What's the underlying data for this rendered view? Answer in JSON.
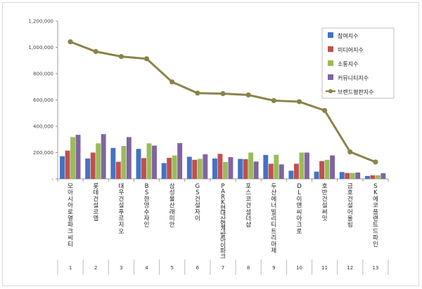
{
  "chart_data": {
    "type": "bar",
    "ylim": [
      0,
      1200000
    ],
    "yticks": [
      "1,200,000",
      "1,000,000",
      "800,000",
      "600,000",
      "400,000",
      "200,000",
      "-"
    ],
    "ytick_values": [
      1200000,
      1000000,
      800000,
      600000,
      400000,
      200000,
      0
    ],
    "grid": false,
    "legend_position": "right",
    "categories": [
      "모아시아 로열파크씨티",
      "롯데건설 르엘",
      "대우건설 푸르지오",
      "BS한양 수자인",
      "삼성물산 래미안",
      "GS건설 자이",
      "PARK현대산업개발 아이파크",
      "포스코건설 더샵",
      "두산에너빌리티 트리마제",
      "DL이앤씨 아크로",
      "호반건설 써밋",
      "금호건설 어울림",
      "SK에코플랜트 드파인"
    ],
    "rank_numbers": [
      "1",
      "2",
      "3",
      "4",
      "5",
      "6",
      "7",
      "8",
      "9",
      "10",
      "11",
      "12",
      "13"
    ],
    "series": [
      {
        "name": "참여지수",
        "color": "#4472c4",
        "values": [
          172000,
          155000,
          235000,
          228000,
          120000,
          168000,
          155000,
          152000,
          182000,
          62000,
          55000,
          52000,
          22000
        ]
      },
      {
        "name": "미디어지수",
        "color": "#c0504d",
        "values": [
          215000,
          200000,
          130000,
          158000,
          160000,
          145000,
          190000,
          150000,
          115000,
          115000,
          135000,
          45000,
          27000
        ]
      },
      {
        "name": "소통지수",
        "color": "#9bbb59",
        "values": [
          318000,
          270000,
          250000,
          270000,
          178000,
          152000,
          128000,
          200000,
          183000,
          200000,
          145000,
          45000,
          27000
        ]
      },
      {
        "name": "커뮤니티지수",
        "color": "#8064a2",
        "values": [
          335000,
          340000,
          318000,
          253000,
          272000,
          187000,
          165000,
          132000,
          110000,
          200000,
          178000,
          48000,
          43000
        ]
      }
    ],
    "line_series": {
      "name": "브랜드평판지수",
      "color": "#8a8348",
      "values": [
        1042000,
        968000,
        930000,
        913000,
        737000,
        652000,
        648000,
        638000,
        595000,
        587000,
        520000,
        205000,
        128000
      ]
    }
  }
}
